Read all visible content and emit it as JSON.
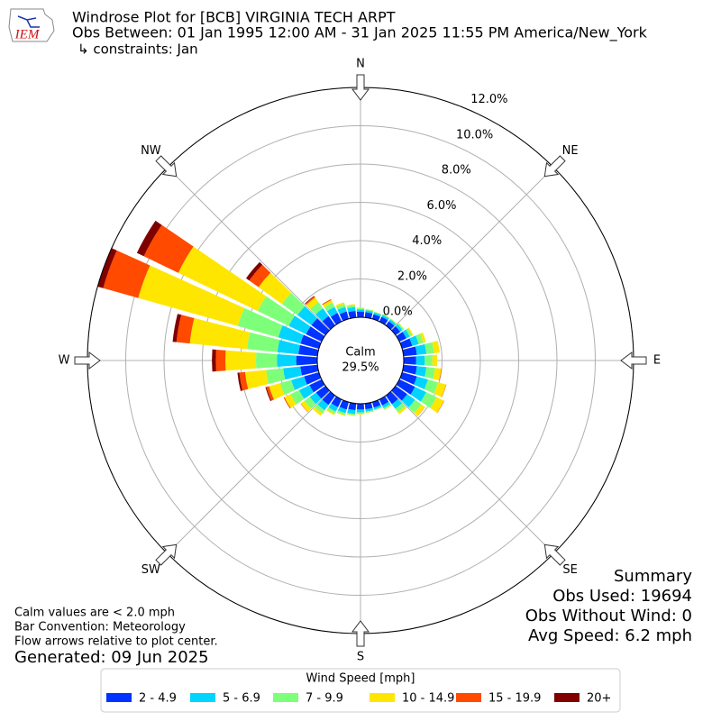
{
  "logo_text": "IEM",
  "chart_data": {
    "type": "windrose",
    "title": "Windrose Plot for [BCB] VIRGINIA TECH ARPT",
    "subtitle": "Obs Between: 01 Jan 1995 12:00 AM - 31 Jan 2025 11:55 PM America/New_York",
    "constraints": "↳ constraints: Jan",
    "directions": [
      0,
      10,
      20,
      30,
      40,
      50,
      60,
      70,
      80,
      90,
      100,
      110,
      120,
      130,
      140,
      150,
      160,
      170,
      180,
      190,
      200,
      210,
      220,
      230,
      240,
      250,
      260,
      270,
      280,
      290,
      300,
      310,
      320,
      330,
      340,
      350
    ],
    "series": [
      {
        "name": "2 - 4.9",
        "color": "#0033ff",
        "values": [
          0.3,
          0.28,
          0.25,
          0.28,
          0.27,
          0.3,
          0.4,
          0.55,
          0.7,
          0.65,
          0.7,
          0.8,
          0.9,
          0.75,
          0.55,
          0.35,
          0.3,
          0.3,
          0.3,
          0.35,
          0.4,
          0.45,
          0.6,
          0.6,
          0.7,
          0.8,
          0.9,
          1.1,
          1.0,
          1.0,
          0.9,
          0.9,
          0.6,
          0.5,
          0.4,
          0.35
        ]
      },
      {
        "name": "5 - 6.9",
        "color": "#00d4ff",
        "values": [
          0.12,
          0.1,
          0.1,
          0.11,
          0.12,
          0.15,
          0.2,
          0.35,
          0.5,
          0.45,
          0.5,
          0.6,
          0.65,
          0.5,
          0.3,
          0.15,
          0.1,
          0.12,
          0.15,
          0.2,
          0.2,
          0.25,
          0.35,
          0.4,
          0.6,
          0.7,
          0.9,
          1.0,
          1.1,
          1.2,
          1.0,
          0.9,
          0.5,
          0.35,
          0.25,
          0.2
        ]
      },
      {
        "name": "7 - 9.9",
        "color": "#7dff7a",
        "values": [
          0.05,
          0.05,
          0.04,
          0.04,
          0.04,
          0.07,
          0.13,
          0.25,
          0.4,
          0.4,
          0.45,
          0.55,
          0.6,
          0.4,
          0.23,
          0.07,
          0.04,
          0.06,
          0.07,
          0.07,
          0.1,
          0.12,
          0.2,
          0.35,
          0.5,
          0.6,
          0.9,
          1.1,
          1.6,
          2.2,
          1.8,
          1.0,
          0.4,
          0.25,
          0.15,
          0.1
        ]
      },
      {
        "name": "10 - 14.9",
        "color": "#ffe600",
        "values": [
          0.03,
          0.02,
          0.01,
          0.02,
          0.02,
          0.03,
          0.07,
          0.15,
          0.3,
          0.25,
          0.33,
          0.43,
          0.43,
          0.24,
          0.12,
          0.03,
          0.01,
          0.02,
          0.03,
          0.03,
          0.05,
          0.08,
          0.15,
          0.23,
          0.35,
          0.6,
          1.1,
          1.6,
          3.0,
          5.4,
          4.6,
          1.5,
          0.3,
          0.15,
          0.1,
          0.05
        ]
      },
      {
        "name": "15 - 19.9",
        "color": "#ff4a00",
        "values": [
          0,
          0,
          0,
          0,
          0,
          0,
          0,
          0,
          0,
          0,
          0.02,
          0.02,
          0.02,
          0.01,
          0,
          0,
          0,
          0,
          0,
          0,
          0,
          0,
          0,
          0.02,
          0.05,
          0.15,
          0.3,
          0.5,
          0.7,
          1.9,
          2.0,
          0.6,
          0.07,
          0.05,
          0,
          0
        ]
      },
      {
        "name": "20+",
        "color": "#800000",
        "values": [
          0,
          0,
          0,
          0,
          0,
          0,
          0,
          0,
          0,
          0,
          0,
          0,
          0,
          0,
          0,
          0,
          0,
          0,
          0,
          0,
          0,
          0,
          0,
          0,
          0,
          0.05,
          0.1,
          0.2,
          0.2,
          0.3,
          0.4,
          0.2,
          0.03,
          0,
          0,
          0
        ]
      }
    ],
    "ylim": [
      0,
      12
    ],
    "yticks": [
      {
        "value": 0,
        "label": "0.0%"
      },
      {
        "value": 2,
        "label": "2.0%"
      },
      {
        "value": 4,
        "label": "4.0%"
      },
      {
        "value": 6,
        "label": "6.0%"
      },
      {
        "value": 8,
        "label": "8.0%"
      },
      {
        "value": 10,
        "label": "10.0%"
      },
      {
        "value": 12,
        "label": "12.0%"
      }
    ],
    "compass": [
      {
        "label": "N",
        "angle": 0
      },
      {
        "label": "NE",
        "angle": 45
      },
      {
        "label": "E",
        "angle": 90
      },
      {
        "label": "SE",
        "angle": 135
      },
      {
        "label": "S",
        "angle": 180
      },
      {
        "label": "SW",
        "angle": 225
      },
      {
        "label": "W",
        "angle": 270
      },
      {
        "label": "NW",
        "angle": 315
      }
    ],
    "calm_label": "Calm",
    "calm_value": 29.5,
    "calm_value_label": "29.5%",
    "legend_title": "Wind Speed [mph]",
    "summary": [
      "Summary",
      "Obs Used: 19694",
      "Obs Without Wind: 0",
      "Avg Speed: 6.2 mph"
    ],
    "notes": [
      "Calm values are < 2.0 mph",
      "Bar Convention: Meteorology",
      "Flow arrows relative to plot center."
    ],
    "generated": "Generated: 09 Jun 2025"
  }
}
